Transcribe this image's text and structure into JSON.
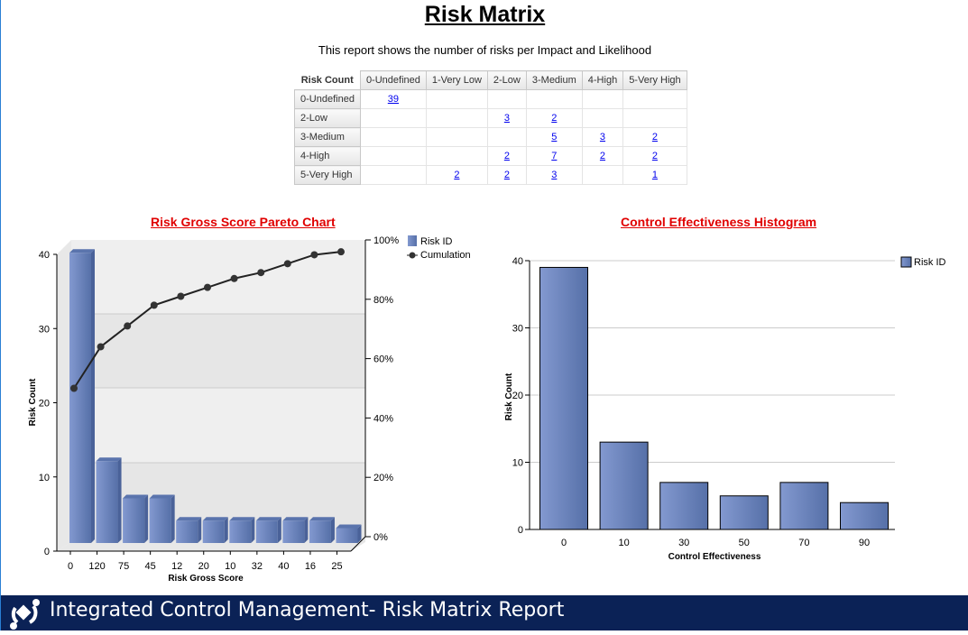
{
  "header": {
    "title": "Risk Matrix ",
    "subtitle": "This report shows the number of risks per Impact and Likelihood"
  },
  "matrix": {
    "corner": "Risk Count",
    "columns": [
      "0-Undefined",
      "1-Very Low",
      "2-Low",
      "3-Medium",
      "4-High",
      "5-Very High"
    ],
    "rows": [
      {
        "label": "0-Undefined",
        "cells": [
          "39",
          "",
          "",
          "",
          "",
          ""
        ]
      },
      {
        "label": "2-Low",
        "cells": [
          "",
          "",
          "3",
          "2",
          "",
          ""
        ]
      },
      {
        "label": "3-Medium",
        "cells": [
          "",
          "",
          "",
          "5",
          "3",
          "2"
        ]
      },
      {
        "label": "4-High",
        "cells": [
          "",
          "",
          "2",
          "7",
          "2",
          "2"
        ]
      },
      {
        "label": "5-Very High",
        "cells": [
          "",
          "2",
          "2",
          "3",
          "",
          "1"
        ]
      }
    ]
  },
  "chart_data": [
    {
      "type": "bar",
      "title": "Risk Gross Score Pareto Chart",
      "xlabel": "Risk Gross Score",
      "ylabel": "Risk Count",
      "categories": [
        "0",
        "120",
        "75",
        "45",
        "12",
        "20",
        "10",
        "32",
        "40",
        "16",
        "25"
      ],
      "series": [
        {
          "name": "Risk ID",
          "values": [
            39,
            11,
            6,
            6,
            3,
            3,
            3,
            3,
            3,
            3,
            2
          ]
        },
        {
          "name": "Cumulation",
          "type": "line",
          "axis": "right",
          "values": [
            50,
            64,
            71,
            78,
            81,
            84,
            87,
            89,
            92,
            95,
            96
          ]
        }
      ],
      "ylim": [
        0,
        40
      ],
      "yticks": [
        "0",
        "10",
        "20",
        "30",
        "40"
      ],
      "y2lim": [
        0,
        100
      ],
      "y2ticks": [
        "0%",
        "20%",
        "40%",
        "60%",
        "80%",
        "100%"
      ],
      "legend": "top-right",
      "colors": {
        "bar": "#6a86c2",
        "line": "#222222"
      }
    },
    {
      "type": "bar",
      "title": "Control Effectiveness Histogram",
      "xlabel": "Control Effectiveness",
      "ylabel": "Risk Count",
      "categories": [
        "0",
        "10",
        "30",
        "50",
        "70",
        "90"
      ],
      "series": [
        {
          "name": "Risk ID",
          "values": [
            39,
            13,
            7,
            5,
            7,
            4
          ]
        }
      ],
      "ylim": [
        0,
        40
      ],
      "yticks": [
        "0",
        "10",
        "20",
        "30",
        "40"
      ],
      "legend": "top-right",
      "grid": true,
      "colors": {
        "bar": "#6a86c2"
      }
    }
  ],
  "footer": {
    "text": "Integrated Control Management- Risk Matrix Report"
  }
}
